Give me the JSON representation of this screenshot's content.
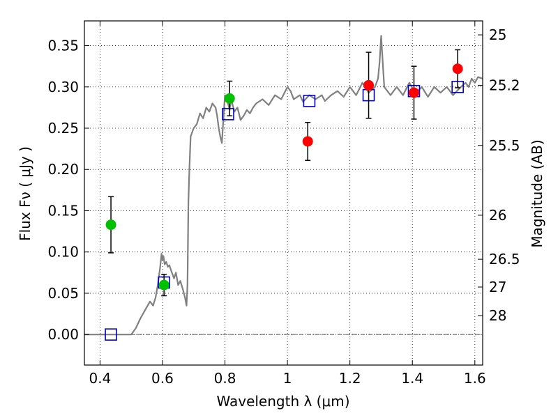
{
  "chart_data": {
    "type": "scatter",
    "title": "",
    "xlabel": "Wavelength  λ (μm)",
    "ylabel": "Flux  Fν  ( μJy )",
    "y2label": "Magnitude (AB)",
    "xlim": [
      0.35,
      1.625
    ],
    "ylim": [
      -0.037,
      0.38
    ],
    "grid": true,
    "grid_style": "dotted",
    "x_ticks": [
      0.4,
      0.6,
      0.8,
      1.0,
      1.2,
      1.4,
      1.6
    ],
    "x_tick_labels": [
      "0.4",
      "0.6",
      "0.8",
      "1",
      "1.2",
      "1.4",
      "1.6"
    ],
    "y_ticks": [
      0.0,
      0.05,
      0.1,
      0.15,
      0.2,
      0.25,
      0.3,
      0.35
    ],
    "y_tick_labels": [
      "0.00",
      "0.05",
      "0.10",
      "0.15",
      "0.20",
      "0.25",
      "0.30",
      "0.35"
    ],
    "mag_ticks": [
      25,
      25.2,
      25.5,
      26,
      26.5,
      27,
      28
    ],
    "mag_tick_labels": [
      "25",
      "25.2",
      "25.5",
      "26",
      "26.5",
      "27",
      "28"
    ],
    "zero_line": true,
    "colors": {
      "spectrum": "#808080",
      "green_points": "#00c000",
      "red_points": "#ff0000",
      "model_boxes": "#0000cc",
      "errorbars": "#000000",
      "zero_line": "#555555"
    },
    "series": [
      {
        "kind": "line",
        "x": [
          0.35,
          0.5,
          0.515,
          0.53,
          0.545,
          0.56,
          0.57,
          0.578,
          0.585,
          0.592,
          0.597,
          0.6,
          0.603,
          0.607,
          0.612,
          0.617,
          0.622,
          0.63,
          0.637,
          0.643,
          0.65,
          0.657,
          0.665,
          0.672,
          0.677,
          0.68,
          0.683,
          0.686,
          0.69,
          0.7,
          0.71,
          0.72,
          0.73,
          0.74,
          0.75,
          0.76,
          0.77,
          0.775,
          0.78,
          0.785,
          0.79,
          0.8,
          0.81,
          0.815,
          0.82,
          0.83,
          0.84,
          0.85,
          0.86,
          0.87,
          0.88,
          0.89,
          0.9,
          0.92,
          0.94,
          0.96,
          0.98,
          1.0,
          1.01,
          1.02,
          1.04,
          1.05,
          1.07,
          1.09,
          1.11,
          1.12,
          1.14,
          1.16,
          1.18,
          1.2,
          1.22,
          1.24,
          1.26,
          1.28,
          1.29,
          1.295,
          1.3,
          1.305,
          1.31,
          1.33,
          1.35,
          1.37,
          1.39,
          1.41,
          1.43,
          1.45,
          1.47,
          1.49,
          1.51,
          1.53,
          1.55,
          1.57,
          1.58,
          1.59,
          1.6,
          1.61,
          1.625
        ],
        "y": [
          0.0,
          0.0,
          0.008,
          0.02,
          0.03,
          0.04,
          0.035,
          0.045,
          0.06,
          0.08,
          0.098,
          0.09,
          0.095,
          0.085,
          0.088,
          0.082,
          0.084,
          0.075,
          0.068,
          0.075,
          0.06,
          0.065,
          0.055,
          0.045,
          0.035,
          0.06,
          0.16,
          0.2,
          0.24,
          0.25,
          0.255,
          0.268,
          0.262,
          0.275,
          0.27,
          0.28,
          0.275,
          0.265,
          0.25,
          0.24,
          0.232,
          0.29,
          0.28,
          0.272,
          0.285,
          0.27,
          0.275,
          0.26,
          0.265,
          0.272,
          0.268,
          0.275,
          0.28,
          0.285,
          0.278,
          0.29,
          0.285,
          0.3,
          0.295,
          0.285,
          0.29,
          0.282,
          0.29,
          0.285,
          0.29,
          0.283,
          0.29,
          0.295,
          0.288,
          0.3,
          0.29,
          0.305,
          0.293,
          0.3,
          0.31,
          0.33,
          0.362,
          0.33,
          0.3,
          0.29,
          0.3,
          0.29,
          0.305,
          0.292,
          0.3,
          0.288,
          0.3,
          0.293,
          0.3,
          0.29,
          0.298,
          0.305,
          0.3,
          0.31,
          0.305,
          0.312,
          0.31
        ]
      },
      {
        "kind": "scatter",
        "marker": "circle-green",
        "x": [
          0.435,
          0.605,
          0.815
        ],
        "y": [
          0.133,
          0.06,
          0.286
        ],
        "yerr": [
          0.034,
          0.013,
          0.021
        ]
      },
      {
        "kind": "scatter",
        "marker": "circle-red",
        "x": [
          1.065,
          1.26,
          1.405,
          1.545
        ],
        "y": [
          0.234,
          0.302,
          0.293,
          0.322
        ],
        "yerr": [
          0.023,
          0.04,
          0.032,
          0.023
        ]
      },
      {
        "kind": "scatter",
        "marker": "square-open-blue",
        "x": [
          0.435,
          0.605,
          0.81,
          1.07,
          1.26,
          1.405,
          1.545
        ],
        "y": [
          0.0,
          0.063,
          0.267,
          0.283,
          0.29,
          0.295,
          0.3
        ]
      }
    ]
  }
}
